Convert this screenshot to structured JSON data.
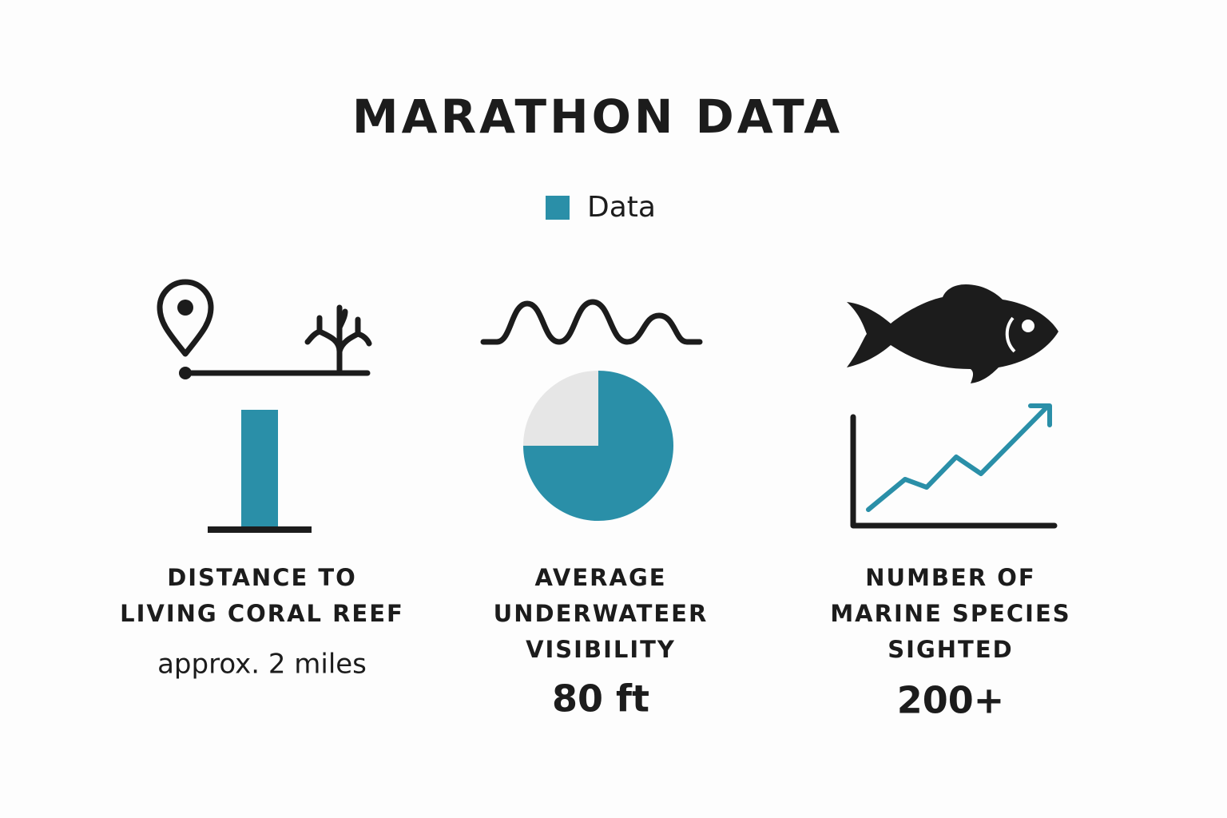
{
  "title": "MARATHON DATA",
  "legend": {
    "label": "Data",
    "color": "#2a8fa8"
  },
  "panels": [
    {
      "label_lines": [
        "DISTANCE TO",
        "LIVING CORAL REEF"
      ],
      "value": "approx. 2 miles"
    },
    {
      "label_lines": [
        "AVERAGE",
        "UNDERWATEER",
        "VISIBILITY"
      ],
      "value": "80 ft"
    },
    {
      "label_lines": [
        "NUMBER OF",
        "MARINE SPECIES",
        "SIGHTED"
      ],
      "value": "200+"
    }
  ]
}
